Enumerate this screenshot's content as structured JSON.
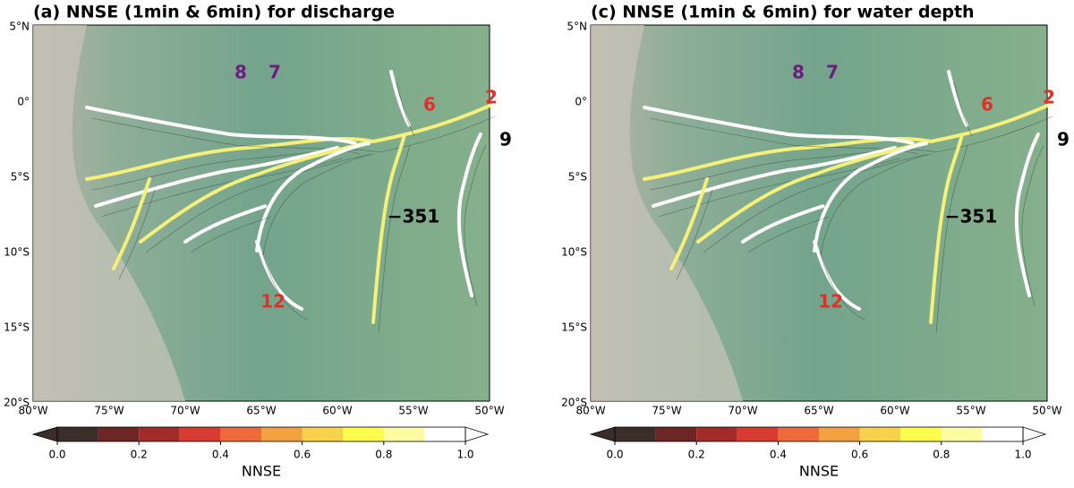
{
  "panels": [
    {
      "title": "(a) NNSE (1min & 6min) for discharge",
      "lat_labels": [
        "5°N",
        "0°",
        "5°S",
        "10°S",
        "15°S",
        "20°S"
      ],
      "lon_labels": [
        "80°W",
        "75°W",
        "70°W",
        "65°W",
        "60°W",
        "55°W",
        "50°W"
      ],
      "stations": [
        {
          "text": "8",
          "color": "#6a1f7a"
        },
        {
          "text": "7",
          "color": "#6a1f7a"
        },
        {
          "text": "6",
          "color": "#e0302a"
        },
        {
          "text": "2",
          "color": "#e0302a"
        },
        {
          "text": "9",
          "color": "#000000"
        },
        {
          "text": "12",
          "color": "#e0302a"
        },
        {
          "text": "−351",
          "color": "#000000"
        }
      ],
      "colorbar": {
        "ticks": [
          "0.0",
          "0.2",
          "0.4",
          "0.6",
          "0.8",
          "1.0"
        ],
        "label": "NNSE"
      }
    },
    {
      "title": "(c) NNSE (1min & 6min) for water depth",
      "lat_labels": [
        "5°N",
        "0°",
        "5°S",
        "10°S",
        "15°S",
        "20°S"
      ],
      "lon_labels": [
        "80°W",
        "75°W",
        "70°W",
        "65°W",
        "60°W",
        "55°W",
        "50°W"
      ],
      "stations": [
        {
          "text": "8",
          "color": "#6a1f7a"
        },
        {
          "text": "7",
          "color": "#6a1f7a"
        },
        {
          "text": "6",
          "color": "#e0302a"
        },
        {
          "text": "2",
          "color": "#e0302a"
        },
        {
          "text": "9",
          "color": "#000000"
        },
        {
          "text": "12",
          "color": "#e0302a"
        },
        {
          "text": "−351",
          "color": "#000000"
        }
      ],
      "colorbar": {
        "ticks": [
          "0.0",
          "0.2",
          "0.4",
          "0.6",
          "0.8",
          "1.0"
        ],
        "label": "NNSE"
      }
    }
  ],
  "colorbar_colors": [
    "#3a2d2a",
    "#6e2624",
    "#a22a28",
    "#d83b30",
    "#ef6a3a",
    "#f4a142",
    "#f8d24b",
    "#fdfb4c",
    "#fdfca2",
    "#ffffff"
  ]
}
